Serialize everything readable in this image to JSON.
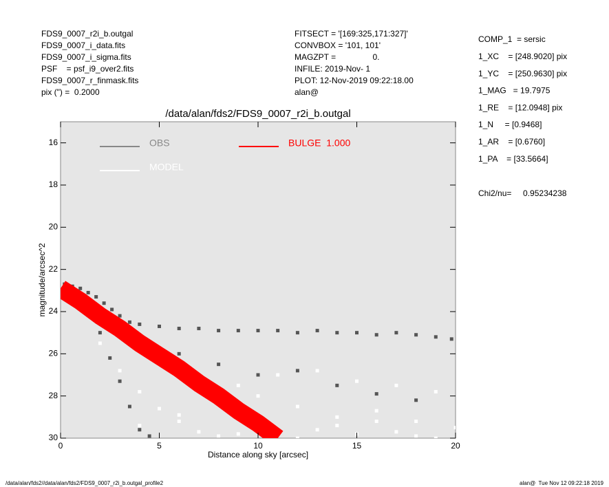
{
  "header": {
    "left": [
      "FDS9_0007_r2i_b.outgal",
      "FDS9_0007_i_data.fits",
      "FDS9_0007_i_sigma.fits",
      "PSF    = psf_i9_over2.fits",
      "FDS9_0007_r_finmask.fits",
      "pix (\") =  0.2000"
    ],
    "middle": [
      "FITSECT = '[169:325,171:327]'",
      "CONVBOX = '101, 101'",
      "MAGZPT =                0.",
      "INFILE: 2019-Nov- 1",
      "PLOT: 12-Nov-2019 09:22:18.00",
      "alan@"
    ],
    "right": [
      "COMP_1  = sersic",
      "1_XC    = [248.9020] pix",
      "1_YC    = [250.9630] pix",
      "1_MAG   = 19.7975",
      "1_RE    = [12.0948] pix",
      "1_N     = [0.9468]",
      "1_AR    = [0.6760]",
      "1_PA    = [33.5664]"
    ],
    "chi2": "Chi2/nu=     0.95234238"
  },
  "footer": {
    "left": "/data/alan/fds2//data/alan/fds2/FDS9_0007_r2i_b.outgal_profile2",
    "right": "alan@  Tue Nov 12 09:22:18 2019"
  },
  "chart_data": {
    "type": "scatter",
    "title": "/data/alan/fds2/FDS9_0007_r2i_b.outgal",
    "xlabel": "Distance along sky [arcsec]",
    "ylabel": "magnitude/arcsec^2",
    "xlim": [
      0,
      20
    ],
    "ylim": [
      30,
      15
    ],
    "xticks": [
      0,
      5,
      10,
      15,
      20
    ],
    "yticks": [
      16,
      18,
      20,
      22,
      24,
      26,
      28,
      30
    ],
    "series": [
      {
        "name": "OBS",
        "color": "#555555",
        "x": [
          0.2,
          0.6,
          1.0,
          1.4,
          1.8,
          2.2,
          2.6,
          3.0,
          3.5,
          4.0,
          5,
          6,
          7,
          8,
          9,
          10,
          11,
          12,
          13,
          14,
          15,
          16,
          17,
          18,
          19,
          19.8,
          1.5,
          2.0,
          2.5,
          3.0,
          3.5,
          4.0,
          4.5,
          6,
          8,
          10,
          12,
          14,
          16,
          18
        ],
        "values": [
          22.7,
          22.8,
          22.9,
          23.1,
          23.3,
          23.6,
          23.9,
          24.2,
          24.5,
          24.6,
          24.7,
          24.8,
          24.8,
          24.9,
          24.9,
          24.9,
          24.9,
          25.0,
          24.9,
          25.0,
          25.0,
          25.1,
          25.0,
          25.1,
          25.2,
          25.3,
          24.0,
          25.0,
          26.2,
          27.3,
          28.5,
          29.6,
          29.9,
          26,
          26.5,
          27,
          26.8,
          27.5,
          27.9,
          28.2
        ]
      },
      {
        "name": "MODEL",
        "color": "#ffffff",
        "x": [
          2,
          3,
          4,
          5,
          6,
          7,
          8,
          9,
          10,
          11,
          12,
          13,
          14,
          15,
          16,
          17,
          18,
          19,
          20,
          5,
          7,
          9,
          11,
          13,
          15,
          17,
          19,
          4,
          6,
          8,
          10,
          12,
          14,
          16,
          18
        ],
        "values": [
          25.5,
          26.8,
          27.8,
          28.6,
          29.2,
          29.7,
          29.9,
          29.8,
          29.5,
          29.8,
          30,
          29.6,
          29.4,
          29.8,
          29.2,
          29.7,
          29.9,
          30,
          29.5,
          26.5,
          27.2,
          27.5,
          27.0,
          26.8,
          27.3,
          27.5,
          27.8,
          29.4,
          28.9,
          28.4,
          28.0,
          28.5,
          29.0,
          28.7,
          29.2
        ]
      },
      {
        "name": "BULGE  1.000",
        "color": "#ff0000",
        "x": [
          0,
          1,
          2,
          3,
          4,
          5,
          6,
          7,
          8,
          9,
          10,
          11
        ],
        "values": [
          22.9,
          23.5,
          24.2,
          24.8,
          25.5,
          26.1,
          26.7,
          27.4,
          28.0,
          28.7,
          29.3,
          30.0
        ]
      }
    ]
  }
}
